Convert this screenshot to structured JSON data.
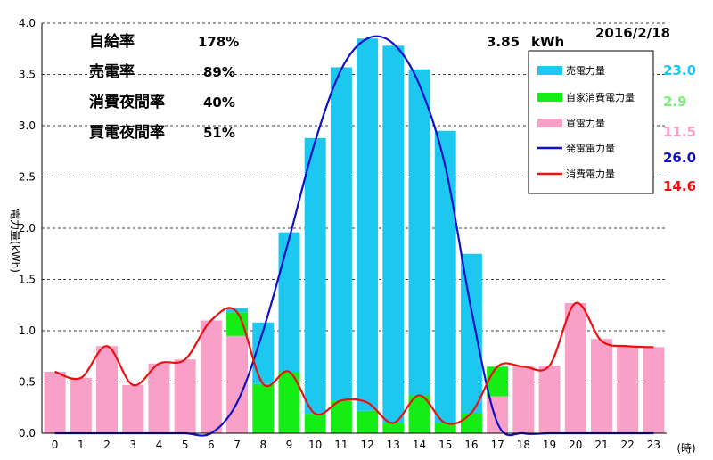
{
  "date": "2016/2/18",
  "peak": {
    "value": "3.85",
    "unit": "kWh"
  },
  "stats": [
    {
      "label": "自給率",
      "value": "178%"
    },
    {
      "label": "売電率",
      "value": "89%"
    },
    {
      "label": "消費夜間率",
      "value": "40%"
    },
    {
      "label": "買電夜間率",
      "value": "51%"
    }
  ],
  "legend": [
    {
      "name": "売電力量",
      "total": "23.0",
      "color": "#1cc8f0",
      "kind": "bar"
    },
    {
      "name": "自家消費電力量",
      "total": "2.9",
      "color": "#14ee14",
      "kind": "bar"
    },
    {
      "name": "買電力量",
      "total": "11.5",
      "color": "#f8a0c8",
      "kind": "bar"
    },
    {
      "name": "発電電力量",
      "total": "26.0",
      "color": "#1010c8",
      "kind": "line"
    },
    {
      "name": "消費電力量",
      "total": "14.6",
      "color": "#ee1010",
      "kind": "line"
    }
  ],
  "chart_data": {
    "type": "bar",
    "ylabel": "電力量(kWh)",
    "xunit": "(時)",
    "ylim": [
      0,
      4.0
    ],
    "yticks": [
      "0.0",
      "0.5",
      "1.0",
      "1.5",
      "2.0",
      "2.5",
      "3.0",
      "3.5",
      "4.0"
    ],
    "categories": [
      "0",
      "1",
      "2",
      "3",
      "4",
      "5",
      "6",
      "7",
      "8",
      "9",
      "10",
      "11",
      "12",
      "13",
      "14",
      "15",
      "16",
      "17",
      "18",
      "19",
      "20",
      "21",
      "22",
      "23"
    ],
    "grid": "horizontal dashed",
    "series": [
      {
        "name": "買電力量",
        "type": "stacked-bar",
        "values": [
          0.6,
          0.54,
          0.85,
          0.47,
          0.68,
          0.72,
          1.1,
          0.95,
          0,
          0,
          0,
          0,
          0,
          0,
          0,
          0,
          0,
          0.36,
          0.65,
          0.66,
          1.27,
          0.92,
          0.85,
          0.84
        ]
      },
      {
        "name": "自家消費電力量",
        "type": "stacked-bar",
        "values": [
          0,
          0,
          0,
          0,
          0,
          0,
          0,
          0.23,
          0.48,
          0.6,
          0.19,
          0.32,
          0.22,
          0.1,
          0.37,
          0.1,
          0.2,
          0.29,
          0,
          0,
          0,
          0,
          0,
          0
        ]
      },
      {
        "name": "売電力量",
        "type": "stacked-bar",
        "values": [
          0,
          0,
          0,
          0,
          0,
          0,
          0,
          0.04,
          0.6,
          1.36,
          2.69,
          3.25,
          3.63,
          3.68,
          3.18,
          2.85,
          1.55,
          0,
          0,
          0,
          0,
          0,
          0,
          0
        ]
      },
      {
        "name": "発電電力量",
        "type": "line",
        "values": [
          0,
          0,
          0,
          0,
          0,
          0,
          0,
          0.3,
          1.0,
          1.9,
          2.85,
          3.55,
          3.85,
          3.8,
          3.4,
          2.6,
          1.2,
          0.1,
          0,
          0,
          0,
          0,
          0,
          0
        ]
      },
      {
        "name": "消費電力量",
        "type": "line",
        "values": [
          0.6,
          0.54,
          0.85,
          0.47,
          0.68,
          0.72,
          1.1,
          1.18,
          0.48,
          0.6,
          0.19,
          0.32,
          0.3,
          0.1,
          0.37,
          0.1,
          0.2,
          0.65,
          0.65,
          0.66,
          1.27,
          0.9,
          0.85,
          0.84
        ]
      }
    ]
  }
}
